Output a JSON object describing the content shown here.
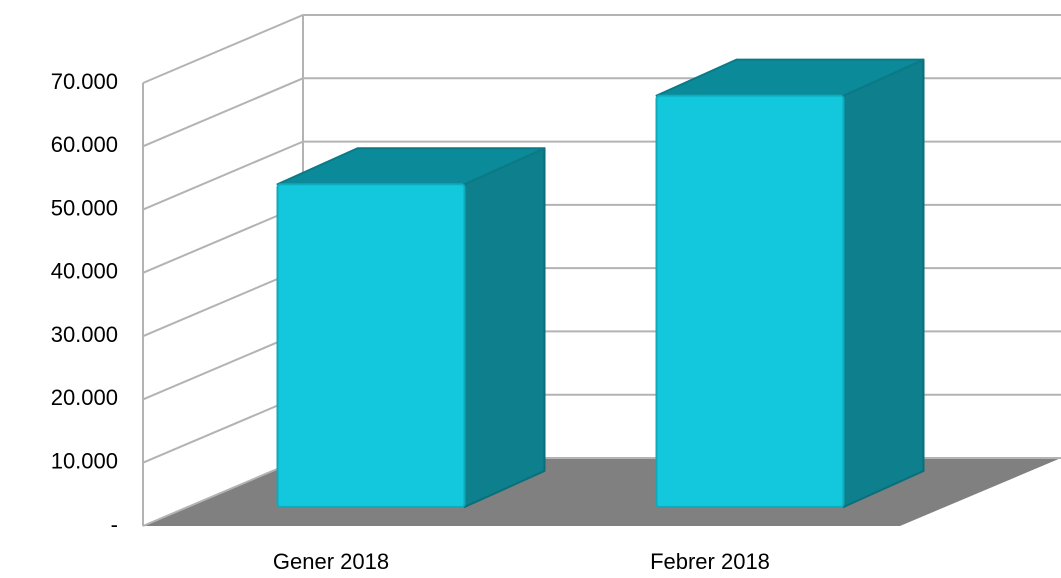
{
  "chart_data": {
    "type": "bar3d",
    "categories": [
      "Gener 2018",
      "Febrer 2018"
    ],
    "values": [
      51000,
      65000
    ],
    "color": "#13c8dc",
    "ylim": [
      0,
      70000
    ],
    "yticks": [
      {
        "value": 0,
        "label": "-"
      },
      {
        "value": 10000,
        "label": "10.000"
      },
      {
        "value": 20000,
        "label": "20.000"
      },
      {
        "value": 30000,
        "label": "30.000"
      },
      {
        "value": 40000,
        "label": "40.000"
      },
      {
        "value": 50000,
        "label": "50.000"
      },
      {
        "value": 60000,
        "label": "60.000"
      },
      {
        "value": 70000,
        "label": "70.000"
      }
    ],
    "grid": true
  }
}
